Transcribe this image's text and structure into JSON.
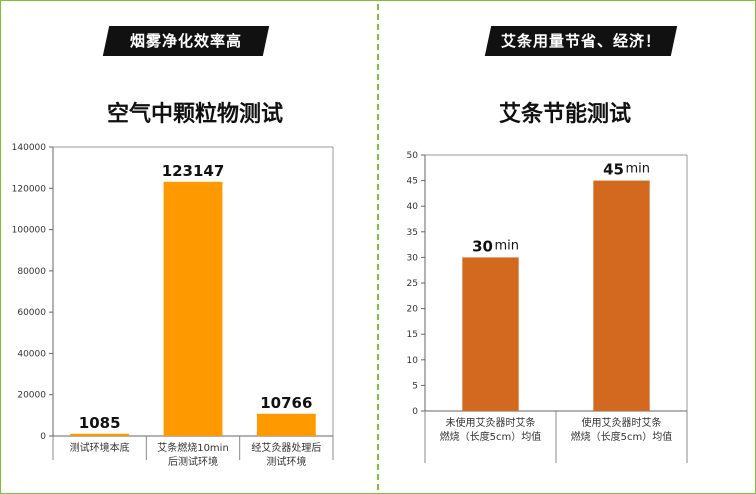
{
  "banners": {
    "left": "烟雾净化效率高",
    "right": "艾条用量节省、经济！"
  },
  "colors": {
    "frame": "#7fbf3a",
    "bar_left": "#ff9900",
    "bar_right": "#d2691e"
  },
  "chart_data": [
    {
      "type": "bar",
      "title": "空气中颗粒物测试",
      "categories": [
        [
          "测试环境本底"
        ],
        [
          "艾条燃烧10min",
          "后测试环境"
        ],
        [
          "经艾灸器处理后",
          "测试环境"
        ]
      ],
      "values": [
        1085,
        123147,
        10766
      ],
      "data_labels": [
        "1085",
        "123147",
        "10766"
      ],
      "ylim": [
        0,
        140000
      ],
      "yticks": [
        0,
        20000,
        40000,
        60000,
        80000,
        100000,
        120000,
        140000
      ],
      "grid": false
    },
    {
      "type": "bar",
      "title": "艾条节能测试",
      "categories": [
        [
          "未使用艾灸器时艾条",
          "燃烧（长度5cm）均值"
        ],
        [
          "使用艾灸器时艾条",
          "燃烧（长度5cm）均值"
        ]
      ],
      "values": [
        30,
        45
      ],
      "data_labels": [
        "30",
        "45"
      ],
      "data_label_unit": "min",
      "ylim": [
        0,
        50
      ],
      "yticks": [
        0,
        5,
        10,
        15,
        20,
        25,
        30,
        35,
        40,
        45,
        50
      ],
      "grid": false
    }
  ]
}
